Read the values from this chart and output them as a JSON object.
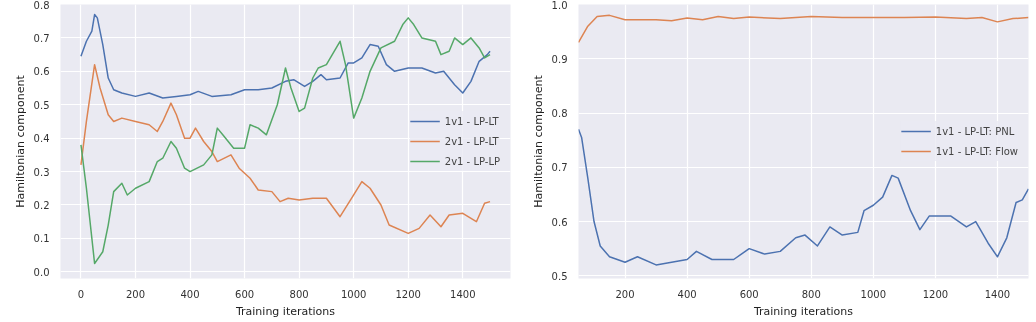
{
  "chart_data": [
    {
      "type": "line",
      "xlabel": "Training iterations",
      "ylabel": "Hamiltonian component",
      "xlim": [
        -75,
        1575
      ],
      "ylim": [
        -0.02,
        0.8
      ],
      "xticks": [
        0,
        200,
        400,
        600,
        800,
        1000,
        1200,
        1400
      ],
      "yticks": [
        {
          "value": 0,
          "label": "0.0"
        },
        0.1,
        0.2,
        0.3,
        0.4,
        0.5,
        0.6,
        0.7,
        0.8
      ],
      "grid": true,
      "legend": "right",
      "line_style": "solid",
      "series": [
        {
          "name": "1v1 - LP-LT",
          "color": "#4c72b0",
          "x": [
            0,
            20,
            40,
            50,
            60,
            80,
            100,
            120,
            150,
            200,
            250,
            300,
            350,
            400,
            430,
            480,
            550,
            600,
            650,
            700,
            750,
            780,
            820,
            850,
            880,
            900,
            950,
            980,
            1000,
            1030,
            1060,
            1090,
            1120,
            1150,
            1200,
            1250,
            1300,
            1330,
            1370,
            1400,
            1430,
            1460,
            1490,
            1500
          ],
          "values": [
            0.645,
            0.69,
            0.72,
            0.77,
            0.76,
            0.68,
            0.58,
            0.545,
            0.535,
            0.525,
            0.535,
            0.52,
            0.525,
            0.53,
            0.54,
            0.525,
            0.53,
            0.545,
            0.545,
            0.55,
            0.57,
            0.575,
            0.555,
            0.57,
            0.59,
            0.575,
            0.58,
            0.625,
            0.625,
            0.64,
            0.68,
            0.675,
            0.62,
            0.6,
            0.61,
            0.61,
            0.595,
            0.6,
            0.56,
            0.535,
            0.57,
            0.63,
            0.65,
            0.66
          ]
        },
        {
          "name": "2v1 - LP-LT",
          "color": "#dd8452",
          "x": [
            0,
            20,
            50,
            70,
            100,
            120,
            150,
            200,
            250,
            280,
            300,
            330,
            350,
            380,
            400,
            420,
            450,
            480,
            500,
            550,
            580,
            620,
            650,
            700,
            730,
            760,
            800,
            850,
            900,
            950,
            1000,
            1030,
            1060,
            1100,
            1130,
            1200,
            1240,
            1280,
            1320,
            1350,
            1400,
            1450,
            1480,
            1500
          ],
          "values": [
            0.32,
            0.45,
            0.62,
            0.55,
            0.47,
            0.45,
            0.46,
            0.45,
            0.44,
            0.42,
            0.45,
            0.505,
            0.47,
            0.4,
            0.4,
            0.43,
            0.39,
            0.36,
            0.33,
            0.35,
            0.31,
            0.28,
            0.245,
            0.24,
            0.21,
            0.22,
            0.215,
            0.22,
            0.22,
            0.165,
            0.23,
            0.27,
            0.25,
            0.2,
            0.14,
            0.115,
            0.13,
            0.17,
            0.135,
            0.17,
            0.175,
            0.15,
            0.205,
            0.21
          ]
        },
        {
          "name": "2v1 - LP-LP",
          "color": "#55a868",
          "x": [
            0,
            20,
            50,
            80,
            100,
            120,
            150,
            170,
            200,
            250,
            280,
            300,
            330,
            350,
            380,
            400,
            450,
            480,
            500,
            520,
            560,
            600,
            620,
            650,
            680,
            720,
            750,
            770,
            800,
            820,
            850,
            870,
            900,
            950,
            970,
            1000,
            1030,
            1060,
            1100,
            1150,
            1180,
            1200,
            1220,
            1250,
            1300,
            1320,
            1350,
            1370,
            1400,
            1430,
            1460,
            1480,
            1500
          ],
          "values": [
            0.38,
            0.25,
            0.025,
            0.06,
            0.14,
            0.24,
            0.265,
            0.23,
            0.25,
            0.27,
            0.33,
            0.34,
            0.39,
            0.37,
            0.31,
            0.3,
            0.32,
            0.35,
            0.43,
            0.41,
            0.37,
            0.37,
            0.44,
            0.43,
            0.41,
            0.5,
            0.61,
            0.55,
            0.48,
            0.49,
            0.58,
            0.61,
            0.62,
            0.69,
            0.62,
            0.46,
            0.52,
            0.6,
            0.67,
            0.69,
            0.74,
            0.76,
            0.74,
            0.7,
            0.69,
            0.65,
            0.66,
            0.7,
            0.68,
            0.7,
            0.67,
            0.64,
            0.65
          ]
        }
      ]
    },
    {
      "type": "line",
      "xlabel": "Training iterations",
      "ylabel": "Hamiltonian component",
      "xlim": [
        50,
        1500
      ],
      "ylim": [
        0.495,
        1.0
      ],
      "xticks": [
        200,
        400,
        600,
        800,
        1000,
        1200,
        1400
      ],
      "yticks": [
        0.5,
        0.6,
        0.7,
        0.8,
        0.9,
        {
          "value": 1,
          "label": "1.0"
        }
      ],
      "grid": true,
      "legend": "right",
      "line_style": "solid",
      "series": [
        {
          "name": "1v1 - LP-LT: PNL",
          "color": "#4c72b0",
          "x": [
            50,
            60,
            80,
            100,
            120,
            150,
            200,
            240,
            300,
            350,
            400,
            430,
            480,
            550,
            600,
            650,
            700,
            750,
            780,
            820,
            860,
            900,
            950,
            970,
            1000,
            1030,
            1060,
            1080,
            1120,
            1150,
            1180,
            1250,
            1300,
            1330,
            1370,
            1400,
            1430,
            1460,
            1480,
            1500
          ],
          "values": [
            0.77,
            0.755,
            0.68,
            0.6,
            0.555,
            0.535,
            0.525,
            0.535,
            0.52,
            0.525,
            0.53,
            0.545,
            0.53,
            0.53,
            0.55,
            0.54,
            0.545,
            0.57,
            0.575,
            0.555,
            0.59,
            0.575,
            0.58,
            0.62,
            0.63,
            0.645,
            0.685,
            0.68,
            0.62,
            0.585,
            0.61,
            0.61,
            0.59,
            0.6,
            0.56,
            0.535,
            0.57,
            0.635,
            0.64,
            0.66
          ]
        },
        {
          "name": "1v1 - LP-LT: Flow",
          "color": "#dd8452",
          "x": [
            50,
            80,
            110,
            150,
            200,
            300,
            350,
            400,
            450,
            500,
            550,
            600,
            700,
            800,
            900,
            1000,
            1100,
            1200,
            1300,
            1350,
            1400,
            1450,
            1500
          ],
          "values": [
            0.93,
            0.96,
            0.978,
            0.98,
            0.972,
            0.972,
            0.97,
            0.975,
            0.972,
            0.978,
            0.974,
            0.977,
            0.974,
            0.978,
            0.976,
            0.976,
            0.976,
            0.977,
            0.974,
            0.976,
            0.968,
            0.974,
            0.976
          ]
        }
      ]
    }
  ]
}
